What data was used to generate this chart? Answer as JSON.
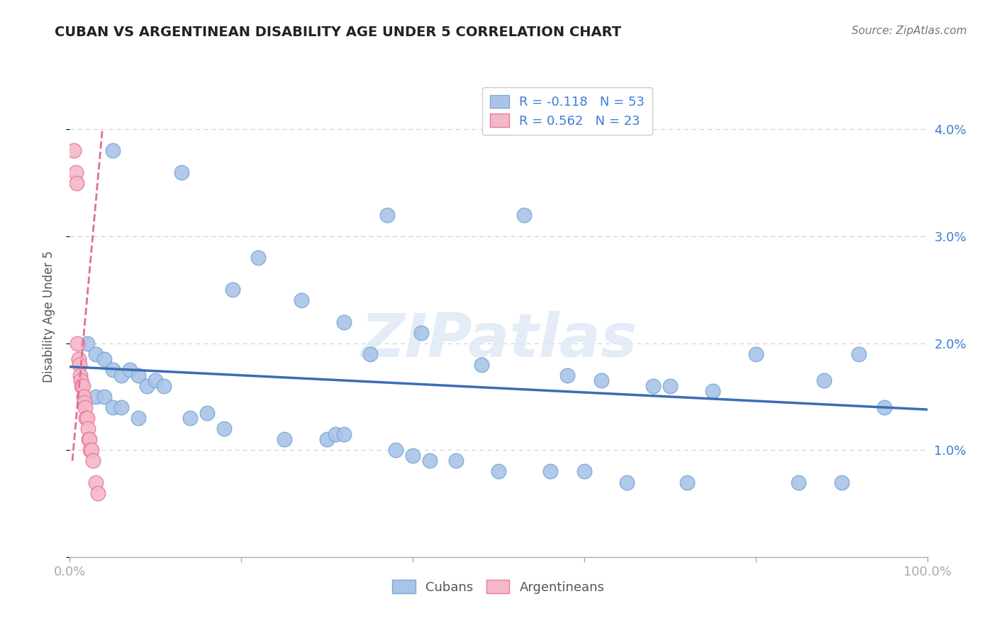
{
  "title": "CUBAN VS ARGENTINEAN DISABILITY AGE UNDER 5 CORRELATION CHART",
  "source": "Source: ZipAtlas.com",
  "ylabel": "Disability Age Under 5",
  "R_cuban": -0.118,
  "N_cuban": 53,
  "R_arg": 0.562,
  "N_arg": 23,
  "xlim": [
    0.0,
    1.0
  ],
  "ylim": [
    0.0,
    0.045
  ],
  "background": "#ffffff",
  "grid_color": "#cccccc",
  "cuban_color": "#aac4e8",
  "cuban_edge": "#7aaad4",
  "arg_color": "#f5b8c8",
  "arg_edge": "#e87a9a",
  "trendline_cuban_color": "#3b6db5",
  "trendline_arg_color": "#e07090",
  "legend_color": "#3a7fd5",
  "text_color": "#222222",
  "tick_color": "#3a7fd5",
  "cubans_x": [
    0.05,
    0.13,
    0.37,
    0.22,
    0.19,
    0.27,
    0.32,
    0.41,
    0.35,
    0.48,
    0.53,
    0.58,
    0.62,
    0.7,
    0.68,
    0.75,
    0.8,
    0.88,
    0.92,
    0.95,
    0.02,
    0.03,
    0.04,
    0.05,
    0.06,
    0.07,
    0.08,
    0.09,
    0.1,
    0.11,
    0.03,
    0.04,
    0.05,
    0.06,
    0.08,
    0.14,
    0.16,
    0.18,
    0.25,
    0.3,
    0.31,
    0.32,
    0.38,
    0.4,
    0.42,
    0.45,
    0.5,
    0.56,
    0.6,
    0.65,
    0.72,
    0.85,
    0.9
  ],
  "cubans_y": [
    0.038,
    0.036,
    0.032,
    0.028,
    0.025,
    0.024,
    0.022,
    0.021,
    0.019,
    0.018,
    0.032,
    0.017,
    0.0165,
    0.016,
    0.016,
    0.0155,
    0.019,
    0.0165,
    0.019,
    0.014,
    0.02,
    0.019,
    0.0185,
    0.0175,
    0.017,
    0.0175,
    0.017,
    0.016,
    0.0165,
    0.016,
    0.015,
    0.015,
    0.014,
    0.014,
    0.013,
    0.013,
    0.0135,
    0.012,
    0.011,
    0.011,
    0.0115,
    0.0115,
    0.01,
    0.0095,
    0.009,
    0.009,
    0.008,
    0.008,
    0.008,
    0.007,
    0.007,
    0.007,
    0.007
  ],
  "arg_x": [
    0.005,
    0.007,
    0.008,
    0.009,
    0.01,
    0.011,
    0.012,
    0.013,
    0.014,
    0.015,
    0.016,
    0.017,
    0.018,
    0.019,
    0.02,
    0.021,
    0.022,
    0.023,
    0.024,
    0.025,
    0.027,
    0.03,
    0.033
  ],
  "arg_y": [
    0.038,
    0.036,
    0.035,
    0.02,
    0.0185,
    0.018,
    0.017,
    0.0165,
    0.016,
    0.016,
    0.015,
    0.0145,
    0.014,
    0.013,
    0.013,
    0.012,
    0.011,
    0.011,
    0.01,
    0.01,
    0.009,
    0.007,
    0.006
  ],
  "cuban_trend_x": [
    0.0,
    1.0
  ],
  "cuban_trend_y": [
    0.0178,
    0.0138
  ],
  "arg_trend_x": [
    0.003,
    0.038
  ],
  "arg_trend_y": [
    0.009,
    0.04
  ]
}
